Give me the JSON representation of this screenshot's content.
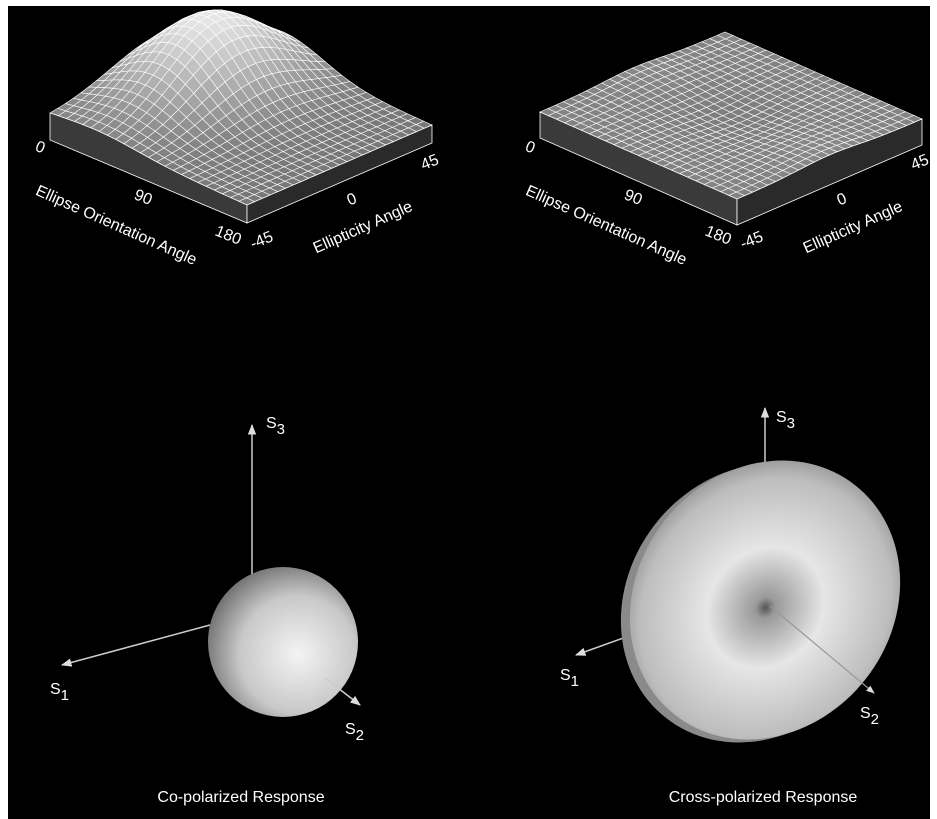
{
  "panels": [
    {
      "surface": {
        "orientation_axis": {
          "title": "Ellipse Orientation Angle",
          "ticks": [
            "0",
            "90",
            "180"
          ]
        },
        "ellipticity_axis": {
          "title": "Ellipticity Angle",
          "ticks": [
            "-45",
            "0",
            "45"
          ]
        }
      },
      "stokes_axes": [
        {
          "name": "S",
          "sub": "1"
        },
        {
          "name": "S",
          "sub": "2"
        },
        {
          "name": "S",
          "sub": "3"
        }
      ],
      "caption": "Co-polarized Response"
    },
    {
      "surface": {
        "orientation_axis": {
          "title": "Ellipse Orientation Angle",
          "ticks": [
            "0",
            "90",
            "180"
          ]
        },
        "ellipticity_axis": {
          "title": "Ellipticity Angle",
          "ticks": [
            "-45",
            "0",
            "45"
          ]
        }
      },
      "stokes_axes": [
        {
          "name": "S",
          "sub": "1"
        },
        {
          "name": "S",
          "sub": "2"
        },
        {
          "name": "S",
          "sub": "3"
        }
      ],
      "caption": "Cross-polarized Response"
    }
  ]
}
